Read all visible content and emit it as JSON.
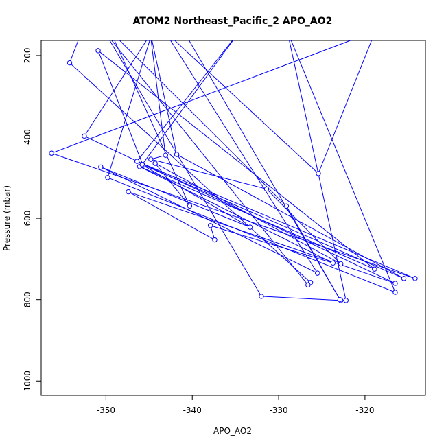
{
  "chart_data": {
    "type": "line",
    "title": "ATOM2 Northeast_Pacific_2 APO_AO2",
    "xlabel": "APO_AO2",
    "ylabel": "Pressure (mbar)",
    "xlim": [
      -357.5,
      -313.0
    ],
    "ylim": [
      1035,
      163
    ],
    "y_reversed": true,
    "x_ticks": [
      -350,
      -340,
      -330,
      -320
    ],
    "x_tick_labels": [
      "-350",
      "-340",
      "-330",
      "-320"
    ],
    "y_ticks": [
      200,
      400,
      600,
      800,
      1000
    ],
    "y_tick_labels": [
      "200",
      "400",
      "600",
      "800",
      "1000"
    ],
    "grid": false,
    "legend": "none",
    "series_color": "#0000ff",
    "series": [
      {
        "values": [
          {
            "x": -352.8,
            "y": 140
          },
          {
            "x": -354.2,
            "y": 218
          },
          {
            "x": -326.3,
            "y": 758
          },
          {
            "x": -326.6,
            "y": 764
          },
          {
            "x": -350.2,
            "y": 140
          },
          {
            "x": -332.0,
            "y": 792
          },
          {
            "x": -322.8,
            "y": 802
          },
          {
            "x": -322.2,
            "y": 802
          },
          {
            "x": -329.0,
            "y": 140
          },
          {
            "x": -316.5,
            "y": 782
          },
          {
            "x": -349.8,
            "y": 500
          },
          {
            "x": -344.6,
            "y": 140
          },
          {
            "x": -352.5,
            "y": 398
          },
          {
            "x": -316.5,
            "y": 760
          },
          {
            "x": -347.4,
            "y": 535
          },
          {
            "x": -337.4,
            "y": 653
          },
          {
            "x": -337.9,
            "y": 618
          },
          {
            "x": -323.7,
            "y": 710
          },
          {
            "x": -346.1,
            "y": 473
          },
          {
            "x": -318.9,
            "y": 725
          },
          {
            "x": -350.9,
            "y": 188
          },
          {
            "x": -345.7,
            "y": 470
          },
          {
            "x": -333.3,
            "y": 622
          },
          {
            "x": -350.6,
            "y": 474
          },
          {
            "x": -325.5,
            "y": 735
          },
          {
            "x": -343.2,
            "y": 140
          },
          {
            "x": -325.4,
            "y": 490
          },
          {
            "x": -318.8,
            "y": 140
          },
          {
            "x": -356.3,
            "y": 440
          },
          {
            "x": -314.2,
            "y": 748
          },
          {
            "x": -346.4,
            "y": 460
          },
          {
            "x": -334.5,
            "y": 140
          },
          {
            "x": -345.8,
            "y": 468
          },
          {
            "x": -315.5,
            "y": 748
          },
          {
            "x": -341.8,
            "y": 443
          },
          {
            "x": -344.9,
            "y": 140
          },
          {
            "x": -343.1,
            "y": 445
          },
          {
            "x": -344.8,
            "y": 455
          },
          {
            "x": -331.4,
            "y": 528
          },
          {
            "x": -322.8,
            "y": 712
          },
          {
            "x": -344.3,
            "y": 465
          },
          {
            "x": -340.3,
            "y": 570
          },
          {
            "x": -349.5,
            "y": 140
          },
          {
            "x": -329.1,
            "y": 570
          },
          {
            "x": -322.9,
            "y": 800
          },
          {
            "x": -341.0,
            "y": 140
          }
        ]
      }
    ]
  }
}
